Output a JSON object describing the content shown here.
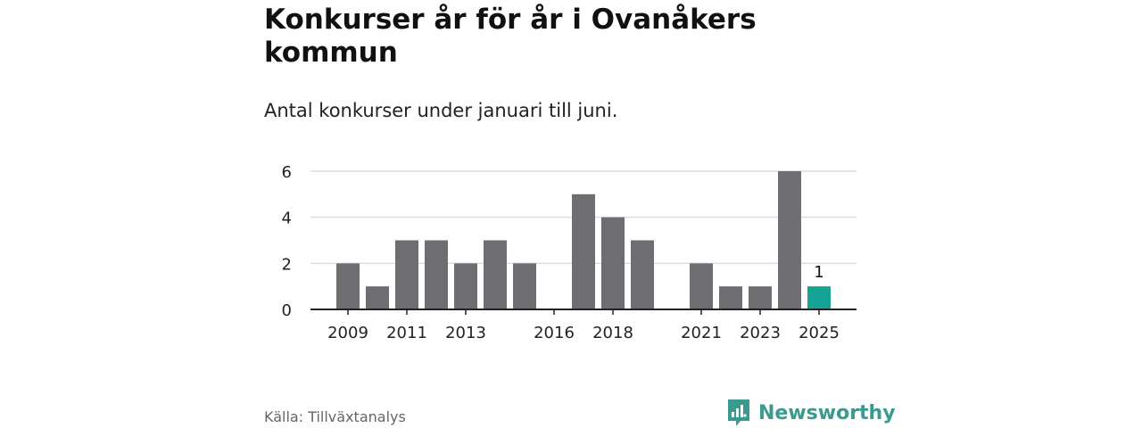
{
  "title": "Konkurser år för år i Ovanåkers kommun",
  "subtitle": "Antal konkurser under januari till juni.",
  "source": "Källa: Tillväxtanalys",
  "brand": {
    "name": "Newsworthy",
    "color": "#3a9a90"
  },
  "colors": {
    "bar": "#6e6d72",
    "highlight": "#14a394",
    "grid": "#dcdcdc",
    "axis": "#222222"
  },
  "chart_data": {
    "type": "bar",
    "categories": [
      "2009",
      "2010",
      "2011",
      "2012",
      "2013",
      "2014",
      "2015",
      "2016",
      "2017",
      "2018",
      "2019",
      "2020",
      "2021",
      "2022",
      "2023",
      "2024",
      "2025"
    ],
    "values": [
      2,
      1,
      3,
      3,
      2,
      3,
      2,
      0,
      5,
      4,
      3,
      0,
      2,
      1,
      1,
      6,
      1
    ],
    "x_tick_labels": [
      "2009",
      "2011",
      "2013",
      "2016",
      "2018",
      "2021",
      "2023",
      "2025"
    ],
    "y_ticks": [
      0,
      2,
      4,
      6
    ],
    "ylim": [
      0,
      6
    ],
    "highlight_category": "2025",
    "data_labels": [
      {
        "category": "2025",
        "text": "1"
      }
    ],
    "xlabel": "",
    "ylabel": "",
    "grid": true
  }
}
